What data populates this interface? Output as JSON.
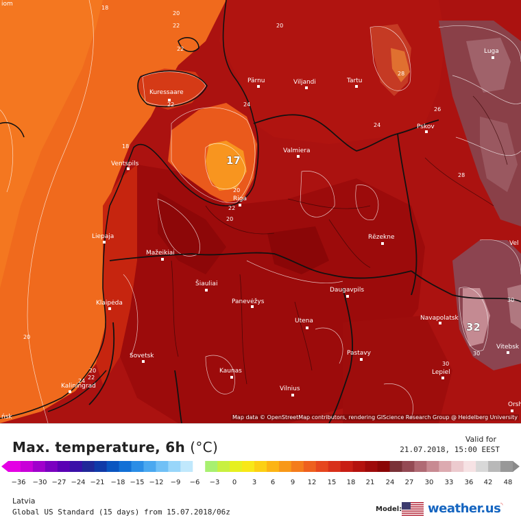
{
  "map": {
    "attribution": "Map data © OpenStreetMap contributors, rendering GIScience Research Group @ Heidelberg University",
    "cities": [
      {
        "name": "Luga"
      },
      {
        "name": "Pärnu"
      },
      {
        "name": "Viljandi"
      },
      {
        "name": "Tartu"
      },
      {
        "name": "Kuressaare"
      },
      {
        "name": "Pskov"
      },
      {
        "name": "Valmiera"
      },
      {
        "name": "Ventspils"
      },
      {
        "name": "Riga"
      },
      {
        "name": "Liepaja"
      },
      {
        "name": "Rēzekne"
      },
      {
        "name": "Mažeikiai"
      },
      {
        "name": "Šiauliai"
      },
      {
        "name": "Panevėžys"
      },
      {
        "name": "Daugavpils"
      },
      {
        "name": "Klaipėda"
      },
      {
        "name": "Utena"
      },
      {
        "name": "Navapolatsk"
      },
      {
        "name": "Vitebsk"
      },
      {
        "name": "Sovetsk"
      },
      {
        "name": "Pastavy"
      },
      {
        "name": "Kaunas"
      },
      {
        "name": "Lepiel"
      },
      {
        "name": "Kaliningrad"
      },
      {
        "name": "Vilnius"
      },
      {
        "name": "Orsh"
      },
      {
        "name": "Vel"
      },
      {
        "name": "ńsk"
      },
      {
        "name": "iom"
      }
    ],
    "contour_labels": [
      "18",
      "20",
      "22",
      "20",
      "24",
      "22",
      "18",
      "22",
      "20",
      "20",
      "24",
      "26",
      "28",
      "20",
      "30",
      "30",
      "30",
      "20",
      "22",
      "24",
      "28",
      "22"
    ],
    "highlight_values": {
      "min": "17",
      "max": "32"
    }
  },
  "legend": {
    "title": "Max. temperature, 6h",
    "unit": "(°C)",
    "valid_for_label": "Valid for",
    "valid_time": "21.07.2018, 15:00 EEST",
    "region": "Latvia",
    "model_run": "Global US Standard (15 days) from 15.07.2018/06z",
    "model_label": "Model:",
    "brand": "weather.us",
    "ticks": [
      "−36",
      "−30",
      "−27",
      "−24",
      "−21",
      "−18",
      "−15",
      "−12",
      "−9",
      "−6",
      "−3",
      "0",
      "3",
      "6",
      "9",
      "12",
      "15",
      "18",
      "21",
      "24",
      "27",
      "30",
      "33",
      "36",
      "42",
      "48"
    ]
  },
  "colors": {
    "sea": "#f36a1e",
    "coastal": "#e0461c",
    "land_dark": "#9a0a0a",
    "land_mid": "#b4150f",
    "hot_pink": "#8e4a50",
    "cool_spot": "#f8941f"
  }
}
